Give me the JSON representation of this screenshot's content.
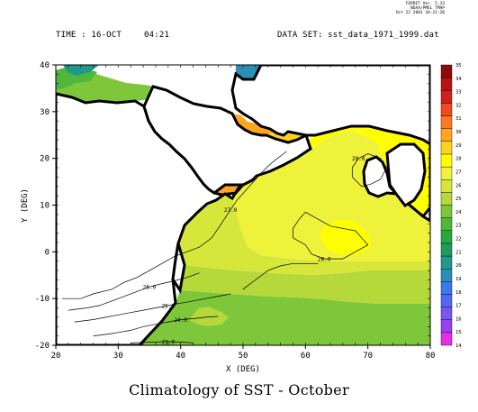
{
  "header": {
    "stamp": [
      "FERRET Ver. 5.33",
      "NOAA/PMEL TMAP",
      "Oct 22 2001 18:21:20"
    ],
    "time_label": "TIME : 16-OCT",
    "time_value": "04:21",
    "dataset": "DATA SET: sst_data_1971_1999.dat"
  },
  "caption": "Climatology of SST - October",
  "chart_data": {
    "type": "heatmap",
    "title": "Climatology of SST - October",
    "xlabel": "X (DEG)",
    "ylabel": "Y (DEG)",
    "xlim": [
      20,
      80
    ],
    "ylim": [
      -20,
      40
    ],
    "x_ticks": [
      "20",
      "30",
      "40",
      "50",
      "60",
      "70",
      "80"
    ],
    "y_ticks": [
      "-20",
      "-10",
      "0",
      "10",
      "20",
      "30",
      "40"
    ],
    "colorbar": {
      "labels": [
        "14",
        "15",
        "16",
        "17",
        "18",
        "19",
        "20",
        "21",
        "22",
        "23",
        "24",
        "25",
        "26",
        "27",
        "28",
        "29",
        "30",
        "31",
        "32",
        "33",
        "34",
        "35"
      ],
      "colors": [
        "#e62ee6",
        "#9a3ef0",
        "#7a55f5",
        "#5566f5",
        "#3a7ae6",
        "#2a8fb8",
        "#1f9a88",
        "#1e9a5a",
        "#2aa840",
        "#4fb83a",
        "#7ec63a",
        "#b5d83a",
        "#d6e63a",
        "#eef23a",
        "#ffff00",
        "#ffd21e",
        "#ffa51e",
        "#ff7a1e",
        "#f04a1e",
        "#d41e1e",
        "#b41414",
        "#8c0a0a"
      ]
    },
    "contours": [
      {
        "label": "27.0",
        "points": [
          [
            21,
            -10
          ],
          [
            24,
            -10
          ],
          [
            26,
            -9
          ],
          [
            29,
            -8
          ],
          [
            31,
            -6.5
          ],
          [
            33,
            -5.5
          ],
          [
            35,
            -4
          ],
          [
            37,
            -2.5
          ],
          [
            39,
            -1
          ],
          [
            41,
            0
          ],
          [
            43,
            1
          ],
          [
            45,
            3
          ],
          [
            46,
            5
          ],
          [
            47,
            7
          ],
          [
            48,
            9
          ],
          [
            49,
            11
          ],
          [
            50,
            12.5
          ],
          [
            51,
            14
          ],
          [
            52,
            15.5
          ],
          [
            53,
            17
          ],
          [
            54,
            18.3
          ],
          [
            55,
            19.5
          ],
          [
            56,
            20.5
          ],
          [
            57,
            21.5
          ]
        ]
      },
      {
        "label": "26.0",
        "points": [
          [
            22,
            -12.5
          ],
          [
            25,
            -12
          ],
          [
            27,
            -11.5
          ],
          [
            29,
            -10.5
          ],
          [
            31,
            -9.5
          ],
          [
            33,
            -8.5
          ],
          [
            35,
            -7.5
          ],
          [
            37,
            -6.8
          ],
          [
            39,
            -6.2
          ],
          [
            41,
            -5.5
          ],
          [
            43,
            -4.5
          ]
        ]
      },
      {
        "label": "25.0",
        "points": [
          [
            23,
            -15
          ],
          [
            26,
            -14.5
          ],
          [
            28,
            -14
          ],
          [
            30,
            -13.5
          ],
          [
            32,
            -13
          ],
          [
            34,
            -12.5
          ],
          [
            36,
            -12
          ],
          [
            38,
            -11.5
          ],
          [
            40,
            -11
          ],
          [
            42,
            -10.5
          ],
          [
            44,
            -10
          ],
          [
            46,
            -9.5
          ],
          [
            48,
            -9
          ]
        ]
      },
      {
        "label": "24.0",
        "points": [
          [
            26,
            -18
          ],
          [
            29,
            -17.5
          ],
          [
            32,
            -16.8
          ],
          [
            34,
            -16
          ],
          [
            36,
            -15.5
          ],
          [
            38,
            -15
          ],
          [
            40,
            -14.5
          ],
          [
            42,
            -14.3
          ],
          [
            44,
            -14
          ],
          [
            46,
            -13.8
          ]
        ]
      },
      {
        "label": "23.0",
        "points": [
          [
            32,
            -19.5
          ],
          [
            34,
            -19.4
          ],
          [
            36,
            -19.3
          ],
          [
            38,
            -19.2
          ],
          [
            40,
            -19.3
          ],
          [
            42,
            -19.5
          ]
        ]
      },
      {
        "label": "28.0",
        "points": [
          [
            60,
            8.5
          ],
          [
            62,
            7
          ],
          [
            64,
            5.5
          ],
          [
            66,
            5
          ],
          [
            68,
            4.5
          ],
          [
            69,
            3
          ],
          [
            70,
            1.5
          ],
          [
            68,
            0
          ],
          [
            66,
            -1.5
          ],
          [
            63,
            -1.5
          ],
          [
            61,
            -0.5
          ],
          [
            60,
            1.5
          ],
          [
            58,
            3
          ],
          [
            58,
            5
          ],
          [
            59,
            7
          ],
          [
            60,
            8.5
          ]
        ]
      },
      {
        "label": "28.0",
        "points": [
          [
            69,
            14
          ],
          [
            70.5,
            14.5
          ],
          [
            72,
            15.5
          ],
          [
            73,
            18
          ],
          [
            72,
            20
          ],
          [
            70,
            21
          ],
          [
            68.5,
            20
          ],
          [
            67.5,
            18
          ],
          [
            67.5,
            16
          ],
          [
            69,
            14
          ]
        ]
      },
      {
        "label": "",
        "points": [
          [
            50,
            -8
          ],
          [
            52,
            -6
          ],
          [
            54,
            -4
          ],
          [
            56,
            -3
          ],
          [
            58,
            -2.5
          ],
          [
            60,
            -2.5
          ],
          [
            62,
            -2.5
          ]
        ]
      }
    ]
  }
}
